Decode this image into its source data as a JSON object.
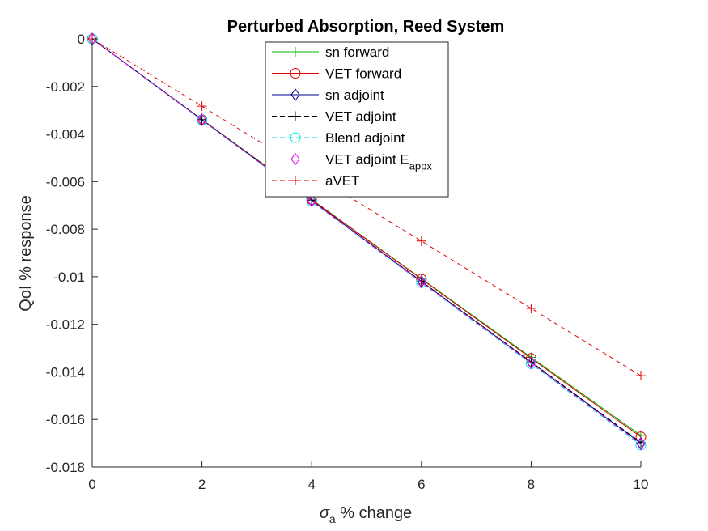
{
  "chart_data": {
    "type": "line",
    "title": "Perturbed Absorption, Reed System",
    "xlabel": {
      "main": "σ",
      "sub": "a",
      "rest": " % change"
    },
    "ylabel": "QoI % response",
    "xlim": [
      0,
      10
    ],
    "ylim": [
      -0.018,
      0
    ],
    "xticks": [
      0,
      2,
      4,
      6,
      8,
      10
    ],
    "xtick_labels": [
      "0",
      "2",
      "4",
      "6",
      "8",
      "10"
    ],
    "yticks": [
      0,
      -0.002,
      -0.004,
      -0.006,
      -0.008,
      -0.01,
      -0.012,
      -0.014,
      -0.016,
      -0.018
    ],
    "ytick_labels": [
      "0",
      "-0.002",
      "-0.004",
      "-0.006",
      "-0.008",
      "-0.01",
      "-0.012",
      "-0.014",
      "-0.016",
      "-0.018"
    ],
    "grid": false,
    "legend_position": "top-center",
    "x": [
      0,
      2,
      4,
      6,
      8,
      10
    ],
    "series": [
      {
        "name": "sn forward",
        "color": "#00bb00",
        "dash": "solid",
        "marker": "plus",
        "values": [
          0,
          -0.00339,
          -0.00675,
          -0.01008,
          -0.01339,
          -0.01667
        ]
      },
      {
        "name": "VET forward",
        "color": "#e00000",
        "dash": "solid",
        "marker": "circle",
        "values": [
          0,
          -0.0034,
          -0.00676,
          -0.0101,
          -0.01343,
          -0.01673
        ]
      },
      {
        "name": "sn adjoint",
        "color": "#00008b",
        "dash": "solid",
        "marker": "diamond",
        "values": [
          0,
          -0.0034,
          -0.0068,
          -0.0102,
          -0.0136,
          -0.017
        ]
      },
      {
        "name": "VET adjoint",
        "color": "#000000",
        "dash": "dashed",
        "marker": "plus",
        "values": [
          0,
          -0.0034,
          -0.00679,
          -0.01019,
          -0.01358,
          -0.01697
        ]
      },
      {
        "name": "Blend adjoint",
        "color": "#00e5ee",
        "dash": "dashed",
        "marker": "circle",
        "values": [
          0,
          -0.00342,
          -0.00683,
          -0.01025,
          -0.01366,
          -0.01708
        ]
      },
      {
        "name": "VET adjoint E",
        "name_sub": "appx",
        "color": "#ee00ee",
        "dash": "dashed",
        "marker": "diamond",
        "values": [
          0,
          -0.00341,
          -0.00681,
          -0.01022,
          -0.01362,
          -0.01703
        ]
      },
      {
        "name": "aVET",
        "color": "#e00000",
        "dash": "dashed",
        "marker": "plus",
        "values": [
          0,
          -0.00283,
          -0.00567,
          -0.0085,
          -0.01133,
          -0.01416
        ]
      }
    ]
  }
}
